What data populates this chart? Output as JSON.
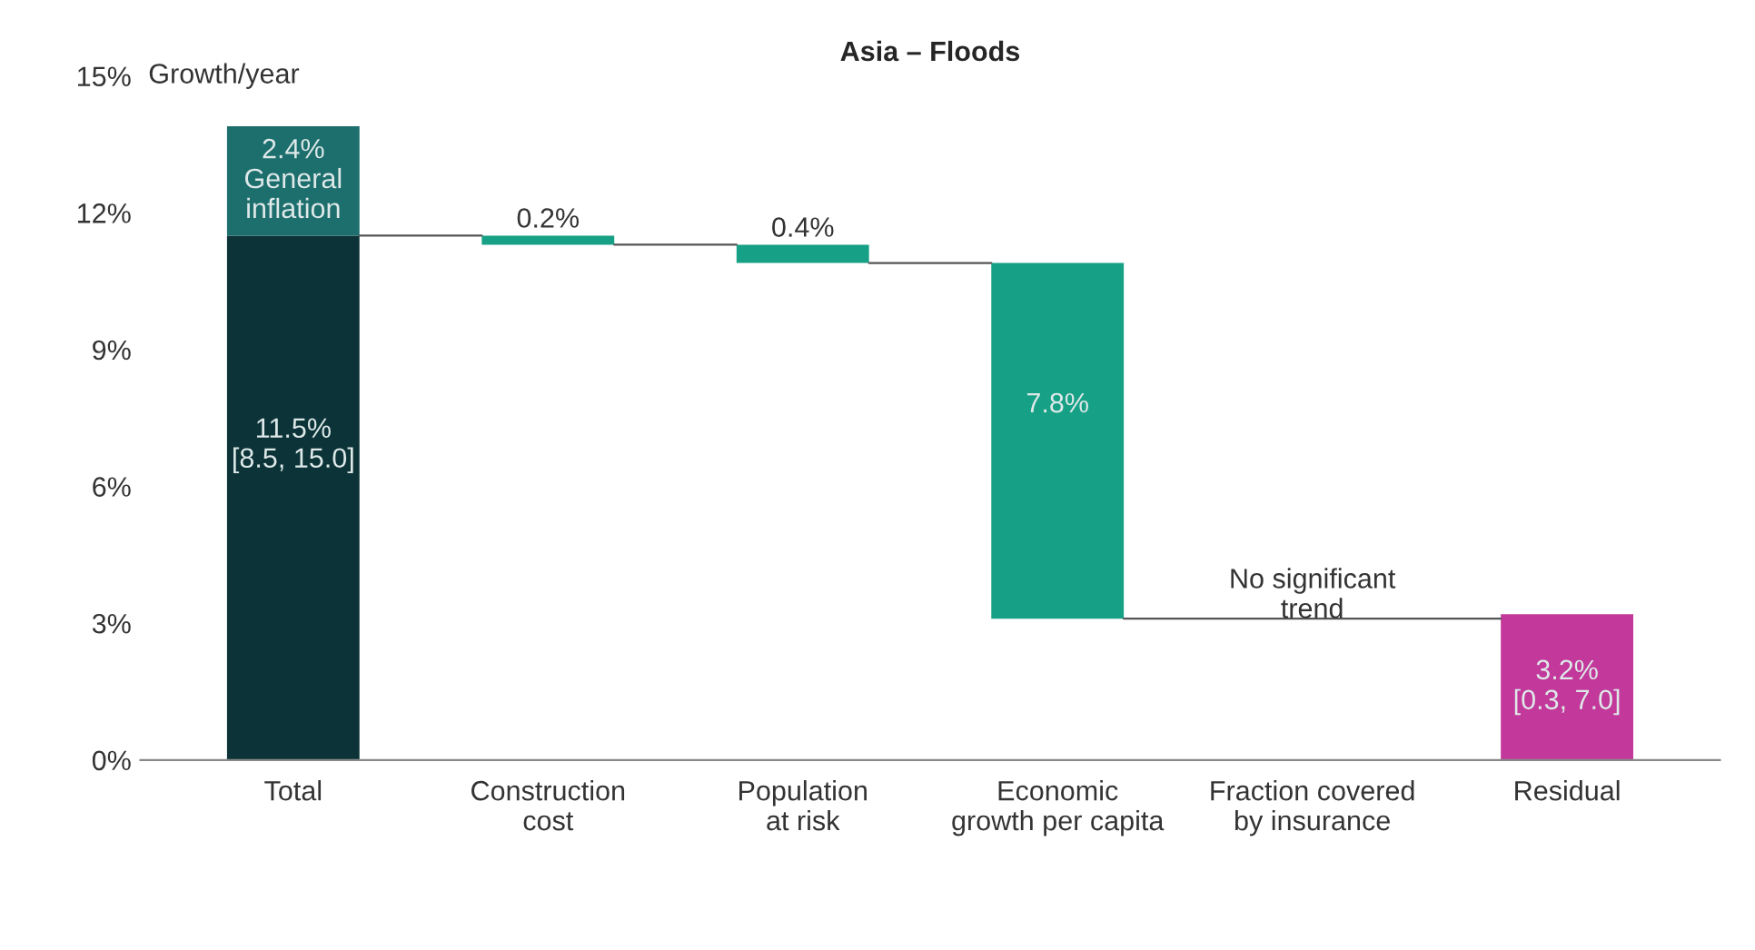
{
  "chart_data": {
    "type": "bar",
    "title": "Asia – Floods",
    "ylabel": "Growth/year",
    "categories": [
      "Total",
      "Construction\ncost",
      "Population\nat risk",
      "Economic\ngrowth per capita",
      "Fraction covered\nby insurance",
      "Residual"
    ],
    "stacked": true,
    "series": [
      {
        "values": [
          11.5,
          0.2,
          0.4,
          7.8,
          null,
          3.2
        ],
        "base": [
          0,
          11.3,
          10.9,
          3.1,
          null,
          0
        ],
        "colors": [
          "#0c3438",
          "#16a085",
          "#16a085",
          "#16a085",
          "#16a085",
          "#c2399b"
        ],
        "value_labels": [
          "11.5%\n[8.5, 15.0]",
          "0.2%",
          "0.4%",
          "7.8%",
          null,
          "3.2%\n[0.3, 7.0]"
        ]
      },
      {
        "values": [
          2.4,
          null,
          null,
          null,
          null,
          null
        ],
        "base": [
          11.5,
          null,
          null,
          null,
          null,
          null
        ],
        "colors": [
          "#1d6f6e",
          null,
          null,
          null,
          null,
          null
        ],
        "value_labels": [
          "2.4%\nGeneral\ninflation",
          null,
          null,
          null,
          null,
          null
        ]
      }
    ],
    "annotations": [
      "No significant\ntrend"
    ],
    "ylim": [
      0,
      15
    ],
    "yticks": [
      {
        "value": 0,
        "label": "0%"
      },
      {
        "value": 3,
        "label": "3%"
      },
      {
        "value": 6,
        "label": "6%"
      },
      {
        "value": 9,
        "label": "9%"
      },
      {
        "value": 12,
        "label": "12%"
      },
      {
        "value": 15,
        "label": "15%"
      }
    ],
    "grid": false,
    "legend": false
  }
}
